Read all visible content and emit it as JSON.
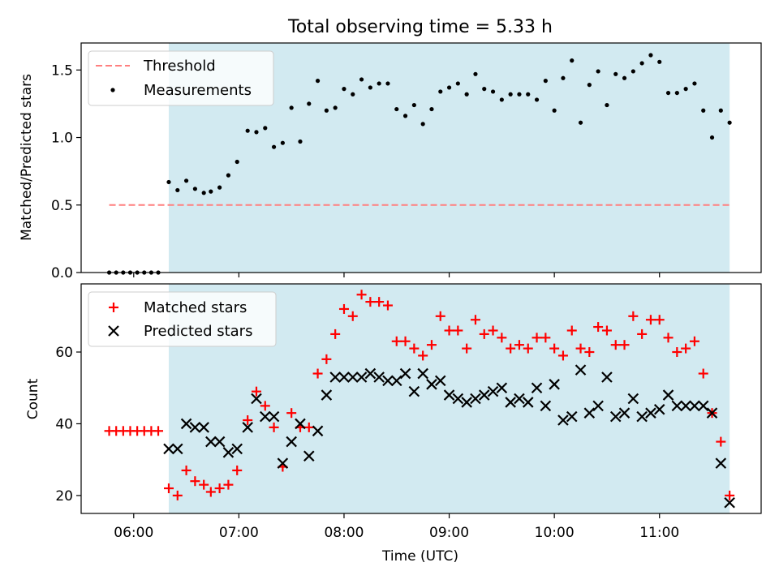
{
  "figure": {
    "title": "Total observing time = 5.33 h"
  },
  "chart_data": [
    {
      "type": "scatter",
      "panel": "top",
      "title": "Total observing time = 5.33 h",
      "ylabel": "Matched/Predicted stars",
      "xlabel": "",
      "xlim": [
        "05:30",
        "11:58"
      ],
      "ylim": [
        0,
        1.7
      ],
      "yticks": [
        0.0,
        0.5,
        1.0,
        1.5
      ],
      "ytick_labels": [
        "0.0",
        "0.5",
        "1.0",
        "1.5"
      ],
      "legend_position": "top-left",
      "shaded_interval": {
        "start": "06:20",
        "end": "11:40",
        "color": "#add8e6"
      },
      "threshold": {
        "name": "Threshold",
        "y": 0.5,
        "x_range": [
          "05:46",
          "11:40"
        ],
        "color": "#ff7f7f",
        "style": "dashed"
      },
      "series": [
        {
          "name": "Measurements",
          "marker": "dot",
          "color": "#000000",
          "points": [
            [
              "05:46",
              0
            ],
            [
              "05:50",
              0
            ],
            [
              "05:54",
              0
            ],
            [
              "05:58",
              0
            ],
            [
              "06:02",
              0
            ],
            [
              "06:06",
              0
            ],
            [
              "06:10",
              0
            ],
            [
              "06:14",
              0
            ],
            [
              "06:20",
              0.67
            ],
            [
              "06:25",
              0.61
            ],
            [
              "06:30",
              0.68
            ],
            [
              "06:35",
              0.62
            ],
            [
              "06:40",
              0.59
            ],
            [
              "06:44",
              0.6
            ],
            [
              "06:49",
              0.63
            ],
            [
              "06:54",
              0.72
            ],
            [
              "06:59",
              0.82
            ],
            [
              "07:05",
              1.05
            ],
            [
              "07:10",
              1.04
            ],
            [
              "07:15",
              1.07
            ],
            [
              "07:20",
              0.93
            ],
            [
              "07:25",
              0.96
            ],
            [
              "07:30",
              1.22
            ],
            [
              "07:35",
              0.97
            ],
            [
              "07:40",
              1.25
            ],
            [
              "07:45",
              1.42
            ],
            [
              "07:50",
              1.2
            ],
            [
              "07:55",
              1.22
            ],
            [
              "08:00",
              1.36
            ],
            [
              "08:05",
              1.32
            ],
            [
              "08:10",
              1.43
            ],
            [
              "08:15",
              1.37
            ],
            [
              "08:20",
              1.4
            ],
            [
              "08:25",
              1.4
            ],
            [
              "08:30",
              1.21
            ],
            [
              "08:35",
              1.16
            ],
            [
              "08:40",
              1.24
            ],
            [
              "08:45",
              1.1
            ],
            [
              "08:50",
              1.21
            ],
            [
              "08:55",
              1.34
            ],
            [
              "09:00",
              1.37
            ],
            [
              "09:05",
              1.4
            ],
            [
              "09:10",
              1.32
            ],
            [
              "09:15",
              1.47
            ],
            [
              "09:20",
              1.36
            ],
            [
              "09:25",
              1.34
            ],
            [
              "09:30",
              1.28
            ],
            [
              "09:35",
              1.32
            ],
            [
              "09:40",
              1.32
            ],
            [
              "09:45",
              1.32
            ],
            [
              "09:50",
              1.28
            ],
            [
              "09:55",
              1.42
            ],
            [
              "10:00",
              1.2
            ],
            [
              "10:05",
              1.44
            ],
            [
              "10:10",
              1.57
            ],
            [
              "10:15",
              1.11
            ],
            [
              "10:20",
              1.39
            ],
            [
              "10:25",
              1.49
            ],
            [
              "10:30",
              1.24
            ],
            [
              "10:35",
              1.47
            ],
            [
              "10:40",
              1.44
            ],
            [
              "10:45",
              1.49
            ],
            [
              "10:50",
              1.55
            ],
            [
              "10:55",
              1.61
            ],
            [
              "11:00",
              1.56
            ],
            [
              "11:05",
              1.33
            ],
            [
              "11:10",
              1.33
            ],
            [
              "11:15",
              1.36
            ],
            [
              "11:20",
              1.4
            ],
            [
              "11:25",
              1.2
            ],
            [
              "11:30",
              1.0
            ],
            [
              "11:35",
              1.2
            ],
            [
              "11:40",
              1.11
            ]
          ]
        }
      ]
    },
    {
      "type": "scatter",
      "panel": "bottom",
      "xlabel": "Time (UTC)",
      "ylabel": "Count",
      "xlim": [
        "05:30",
        "11:58"
      ],
      "ylim": [
        15,
        79
      ],
      "xticks": [
        "06:00",
        "07:00",
        "08:00",
        "09:00",
        "10:00",
        "11:00"
      ],
      "yticks": [
        20,
        40,
        60
      ],
      "ytick_labels": [
        "20",
        "40",
        "60"
      ],
      "legend_position": "top-left",
      "shaded_interval": {
        "start": "06:20",
        "end": "11:40",
        "color": "#add8e6"
      },
      "series": [
        {
          "name": "Matched stars",
          "marker": "plus",
          "color": "#ff0000",
          "points": [
            [
              "05:46",
              38
            ],
            [
              "05:50",
              38
            ],
            [
              "05:54",
              38
            ],
            [
              "05:58",
              38
            ],
            [
              "06:02",
              38
            ],
            [
              "06:06",
              38
            ],
            [
              "06:10",
              38
            ],
            [
              "06:14",
              38
            ],
            [
              "06:20",
              22
            ],
            [
              "06:25",
              20
            ],
            [
              "06:30",
              27
            ],
            [
              "06:35",
              24
            ],
            [
              "06:40",
              23
            ],
            [
              "06:44",
              21
            ],
            [
              "06:49",
              22
            ],
            [
              "06:54",
              23
            ],
            [
              "06:59",
              27
            ],
            [
              "07:05",
              41
            ],
            [
              "07:10",
              49
            ],
            [
              "07:15",
              45
            ],
            [
              "07:20",
              39
            ],
            [
              "07:25",
              28
            ],
            [
              "07:30",
              43
            ],
            [
              "07:35",
              39
            ],
            [
              "07:40",
              39
            ],
            [
              "07:45",
              54
            ],
            [
              "07:50",
              58
            ],
            [
              "07:55",
              65
            ],
            [
              "08:00",
              72
            ],
            [
              "08:05",
              70
            ],
            [
              "08:10",
              76
            ],
            [
              "08:15",
              74
            ],
            [
              "08:20",
              74
            ],
            [
              "08:25",
              73
            ],
            [
              "08:30",
              63
            ],
            [
              "08:35",
              63
            ],
            [
              "08:40",
              61
            ],
            [
              "08:45",
              59
            ],
            [
              "08:50",
              62
            ],
            [
              "08:55",
              70
            ],
            [
              "09:00",
              66
            ],
            [
              "09:05",
              66
            ],
            [
              "09:10",
              61
            ],
            [
              "09:15",
              69
            ],
            [
              "09:20",
              65
            ],
            [
              "09:25",
              66
            ],
            [
              "09:30",
              64
            ],
            [
              "09:35",
              61
            ],
            [
              "09:40",
              62
            ],
            [
              "09:45",
              61
            ],
            [
              "09:50",
              64
            ],
            [
              "09:55",
              64
            ],
            [
              "10:00",
              61
            ],
            [
              "10:05",
              59
            ],
            [
              "10:10",
              66
            ],
            [
              "10:15",
              61
            ],
            [
              "10:20",
              60
            ],
            [
              "10:25",
              67
            ],
            [
              "10:30",
              66
            ],
            [
              "10:35",
              62
            ],
            [
              "10:40",
              62
            ],
            [
              "10:45",
              70
            ],
            [
              "10:50",
              65
            ],
            [
              "10:55",
              69
            ],
            [
              "11:00",
              69
            ],
            [
              "11:05",
              64
            ],
            [
              "11:10",
              60
            ],
            [
              "11:15",
              61
            ],
            [
              "11:20",
              63
            ],
            [
              "11:25",
              54
            ],
            [
              "11:30",
              43
            ],
            [
              "11:35",
              35
            ],
            [
              "11:40",
              20
            ]
          ]
        },
        {
          "name": "Predicted stars",
          "marker": "x",
          "color": "#000000",
          "points": [
            [
              "06:20",
              33
            ],
            [
              "06:25",
              33
            ],
            [
              "06:30",
              40
            ],
            [
              "06:35",
              39
            ],
            [
              "06:40",
              39
            ],
            [
              "06:44",
              35
            ],
            [
              "06:49",
              35
            ],
            [
              "06:54",
              32
            ],
            [
              "06:59",
              33
            ],
            [
              "07:05",
              39
            ],
            [
              "07:10",
              47
            ],
            [
              "07:15",
              42
            ],
            [
              "07:20",
              42
            ],
            [
              "07:25",
              29
            ],
            [
              "07:30",
              35
            ],
            [
              "07:35",
              40
            ],
            [
              "07:40",
              31
            ],
            [
              "07:45",
              38
            ],
            [
              "07:50",
              48
            ],
            [
              "07:55",
              53
            ],
            [
              "08:00",
              53
            ],
            [
              "08:05",
              53
            ],
            [
              "08:10",
              53
            ],
            [
              "08:15",
              54
            ],
            [
              "08:20",
              53
            ],
            [
              "08:25",
              52
            ],
            [
              "08:30",
              52
            ],
            [
              "08:35",
              54
            ],
            [
              "08:40",
              49
            ],
            [
              "08:45",
              54
            ],
            [
              "08:50",
              51
            ],
            [
              "08:55",
              52
            ],
            [
              "09:00",
              48
            ],
            [
              "09:05",
              47
            ],
            [
              "09:10",
              46
            ],
            [
              "09:15",
              47
            ],
            [
              "09:20",
              48
            ],
            [
              "09:25",
              49
            ],
            [
              "09:30",
              50
            ],
            [
              "09:35",
              46
            ],
            [
              "09:40",
              47
            ],
            [
              "09:45",
              46
            ],
            [
              "09:50",
              50
            ],
            [
              "09:55",
              45
            ],
            [
              "10:00",
              51
            ],
            [
              "10:05",
              41
            ],
            [
              "10:10",
              42
            ],
            [
              "10:15",
              55
            ],
            [
              "10:20",
              43
            ],
            [
              "10:25",
              45
            ],
            [
              "10:30",
              53
            ],
            [
              "10:35",
              42
            ],
            [
              "10:40",
              43
            ],
            [
              "10:45",
              47
            ],
            [
              "10:50",
              42
            ],
            [
              "10:55",
              43
            ],
            [
              "11:00",
              44
            ],
            [
              "11:05",
              48
            ],
            [
              "11:10",
              45
            ],
            [
              "11:15",
              45
            ],
            [
              "11:20",
              45
            ],
            [
              "11:25",
              45
            ],
            [
              "11:30",
              43
            ],
            [
              "11:35",
              29
            ],
            [
              "11:40",
              18
            ]
          ]
        }
      ]
    }
  ]
}
